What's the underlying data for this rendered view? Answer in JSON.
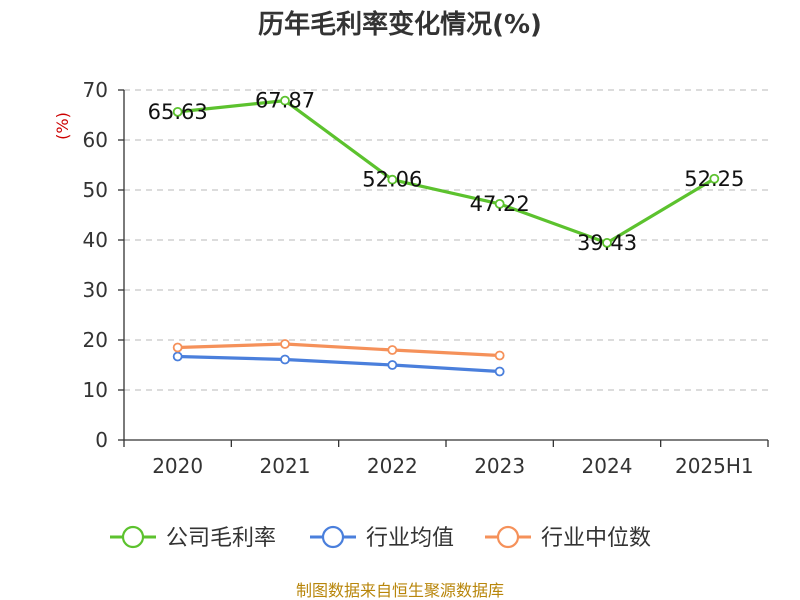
{
  "chart_data": {
    "type": "line",
    "title": "历年毛利率变化情况(%)",
    "ylabel": "(%)",
    "xlabel": "",
    "categories": [
      "2020",
      "2021",
      "2022",
      "2023",
      "2024",
      "2025H1"
    ],
    "ylim": [
      0,
      70
    ],
    "yticks": [
      0,
      10,
      20,
      30,
      40,
      50,
      60,
      70
    ],
    "grid": true,
    "legend_position": "bottom",
    "series": [
      {
        "name": "公司毛利率",
        "color": "#5cc22e",
        "values": [
          65.63,
          67.87,
          52.06,
          47.22,
          39.43,
          52.25
        ],
        "data_labels": [
          "65.63",
          "67.87",
          "52.06",
          "47.22",
          "39.43",
          "52.25"
        ]
      },
      {
        "name": "行业均值",
        "color": "#4a7fdc",
        "values": [
          16.7,
          16.1,
          15.0,
          13.7,
          null,
          null
        ]
      },
      {
        "name": "行业中位数",
        "color": "#f5915a",
        "values": [
          18.5,
          19.2,
          18.0,
          16.9,
          null,
          null
        ]
      }
    ]
  },
  "footer": {
    "source": "制图数据来自恒生聚源数据库"
  }
}
